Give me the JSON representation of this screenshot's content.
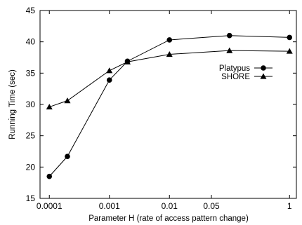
{
  "chart_data": {
    "type": "line",
    "xlabel": "Parameter H (rate of access pattern change)",
    "ylabel": "Running Time (sec)",
    "x_scale": "log",
    "xlim": [
      7e-05,
      1.3
    ],
    "ylim": [
      15,
      45
    ],
    "x_ticks": [
      {
        "value": 0.0001,
        "label": "0.0001"
      },
      {
        "value": 0.001,
        "label": "0.001"
      },
      {
        "value": 0.01,
        "label": "0.01"
      },
      {
        "value": 0.05,
        "label": "0.05"
      },
      {
        "value": 1,
        "label": "1"
      }
    ],
    "y_ticks": [
      15,
      20,
      25,
      30,
      35,
      40,
      45
    ],
    "grid": false,
    "legend_position": "right",
    "series": [
      {
        "name": "Platypus",
        "marker": "circle",
        "color": "#000000",
        "x": [
          0.0001,
          0.0002,
          0.001,
          0.002,
          0.01,
          0.1,
          1
        ],
        "y": [
          18.5,
          21.7,
          33.9,
          36.9,
          40.3,
          41.0,
          40.7
        ]
      },
      {
        "name": "SHORE",
        "marker": "triangle",
        "color": "#000000",
        "x": [
          0.0001,
          0.0002,
          0.001,
          0.002,
          0.01,
          0.1,
          1
        ],
        "y": [
          29.6,
          30.6,
          35.4,
          36.8,
          38.0,
          38.6,
          38.5
        ]
      }
    ]
  }
}
